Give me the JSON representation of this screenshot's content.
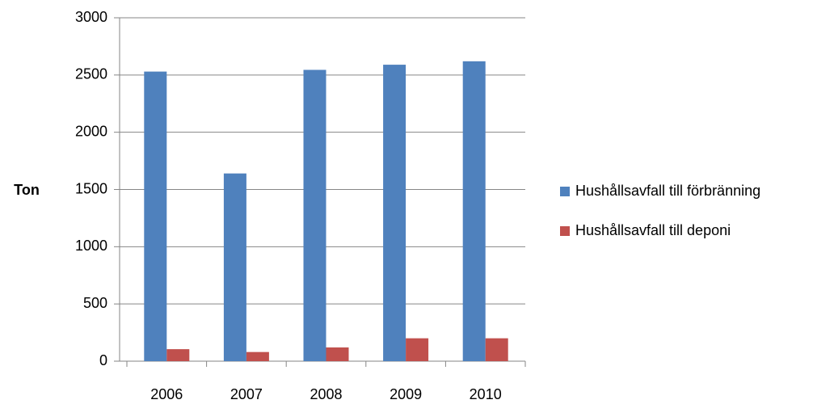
{
  "chart_data": {
    "type": "bar",
    "y_label": "Ton",
    "categories": [
      "2006",
      "2007",
      "2008",
      "2009",
      "2010"
    ],
    "series": [
      {
        "name": "Hushållsavfall till förbränning",
        "color": "#4f81bd",
        "values": [
          2530,
          1640,
          2545,
          2590,
          2620
        ]
      },
      {
        "name": "Hushållsavfall till deponi",
        "color": "#c0504d",
        "values": [
          105,
          80,
          120,
          200,
          200
        ]
      }
    ],
    "ylim": [
      0,
      3000
    ],
    "yticks": [
      0,
      500,
      1000,
      1500,
      2000,
      2500,
      3000
    ],
    "grid": true,
    "legend": "right"
  }
}
